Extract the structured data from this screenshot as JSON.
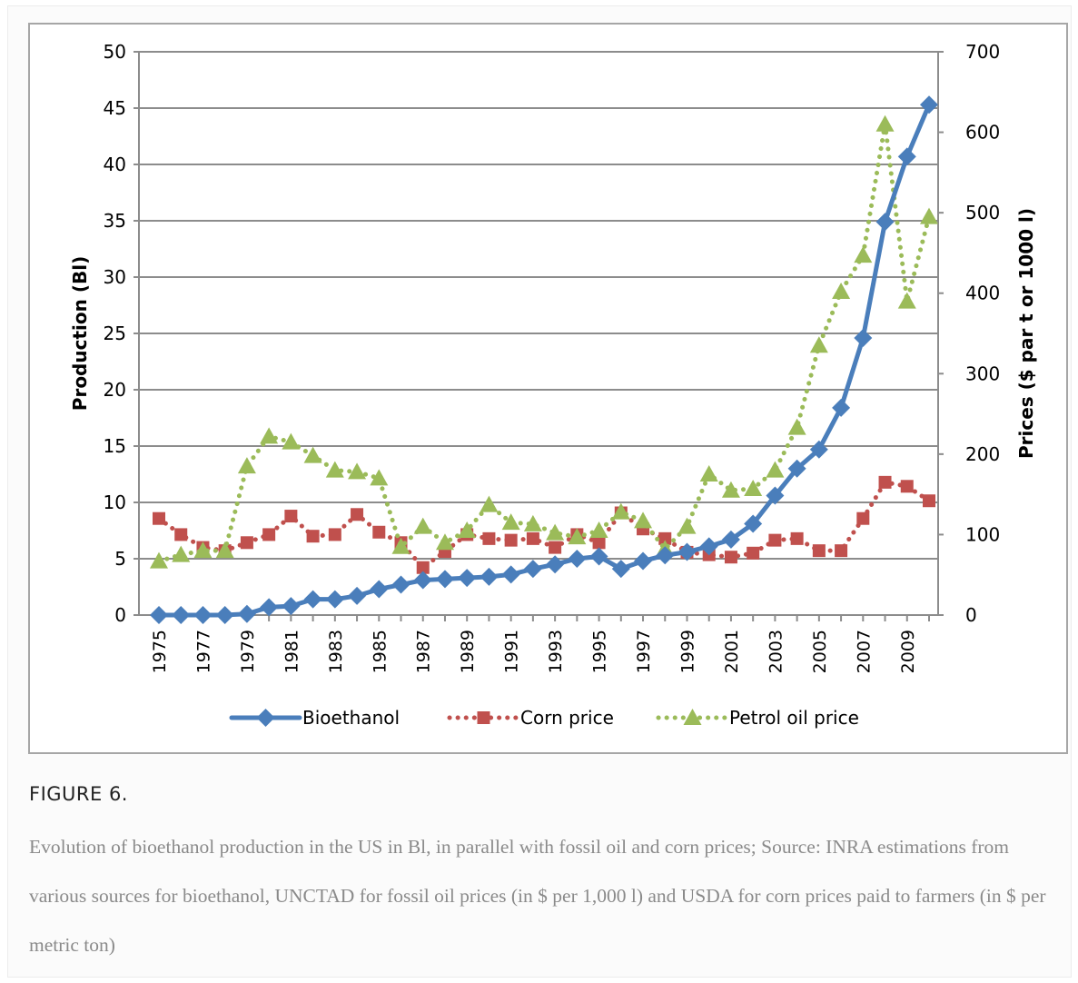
{
  "figure": {
    "label": "FIGURE 6.",
    "caption": "Evolution of bioethanol production in the US in Bl, in parallel with fossil oil and corn prices; Source: INRA estimations from various sources for bioethanol, UNCTAD for fossil oil prices (in $ per 1,000 l) and USDA for corn prices paid to farmers (in $ per metric ton)"
  },
  "chart_data": {
    "type": "line",
    "xlabel": "",
    "ylabel": "Production (Bl)",
    "y2label": "Prices ($ par t or 1000 l)",
    "x": [
      1975,
      1976,
      1977,
      1978,
      1979,
      1980,
      1981,
      1982,
      1983,
      1984,
      1985,
      1986,
      1987,
      1988,
      1989,
      1990,
      1991,
      1992,
      1993,
      1994,
      1995,
      1996,
      1997,
      1998,
      1999,
      2000,
      2001,
      2002,
      2003,
      2004,
      2005,
      2006,
      2007,
      2008,
      2009,
      2010
    ],
    "x_tick_labels": [
      "1975",
      "1977",
      "1979",
      "1981",
      "1983",
      "1985",
      "1987",
      "1989",
      "1991",
      "1993",
      "1995",
      "1997",
      "1999",
      "2001",
      "2003",
      "2005",
      "2007",
      "2009"
    ],
    "ylim": [
      0,
      50
    ],
    "y_ticks": [
      0,
      5,
      10,
      15,
      20,
      25,
      30,
      35,
      40,
      45,
      50
    ],
    "y2lim": [
      0,
      700
    ],
    "y2_ticks": [
      0,
      100,
      200,
      300,
      400,
      500,
      600,
      700
    ],
    "grid": "horizontal",
    "legend_position": "bottom",
    "series": [
      {
        "name": "Bioethanol",
        "axis": "left",
        "color": "#4a7ebb",
        "line": "solid",
        "marker": "diamond",
        "values": [
          0,
          0,
          0,
          0,
          0.1,
          0.7,
          0.8,
          1.4,
          1.4,
          1.7,
          2.3,
          2.7,
          3.1,
          3.2,
          3.3,
          3.4,
          3.6,
          4.1,
          4.5,
          5.0,
          5.2,
          4.1,
          4.8,
          5.3,
          5.6,
          6.1,
          6.7,
          8.1,
          10.6,
          13.0,
          14.7,
          18.4,
          24.6,
          34.9,
          40.7,
          45.3
        ]
      },
      {
        "name": "Corn price",
        "axis": "right",
        "color": "#c0504d",
        "line": "dotted",
        "marker": "square",
        "values": [
          120,
          100,
          84,
          80,
          90,
          100,
          123,
          98,
          100,
          125,
          103,
          90,
          59,
          79,
          100,
          95,
          93,
          95,
          84,
          100,
          90,
          127,
          107,
          95,
          78,
          75,
          72,
          77,
          93,
          95,
          80,
          80,
          120,
          165,
          160,
          142
        ]
      },
      {
        "name": "Petrol oil price",
        "axis": "right",
        "color": "#9bbb59",
        "line": "dotted",
        "marker": "triangle",
        "values": [
          67,
          75,
          80,
          80,
          185,
          222,
          215,
          198,
          180,
          178,
          170,
          85,
          110,
          90,
          105,
          137,
          115,
          113,
          102,
          97,
          105,
          128,
          117,
          82,
          110,
          175,
          155,
          157,
          180,
          233,
          335,
          402,
          447,
          610,
          390,
          495
        ]
      }
    ]
  }
}
